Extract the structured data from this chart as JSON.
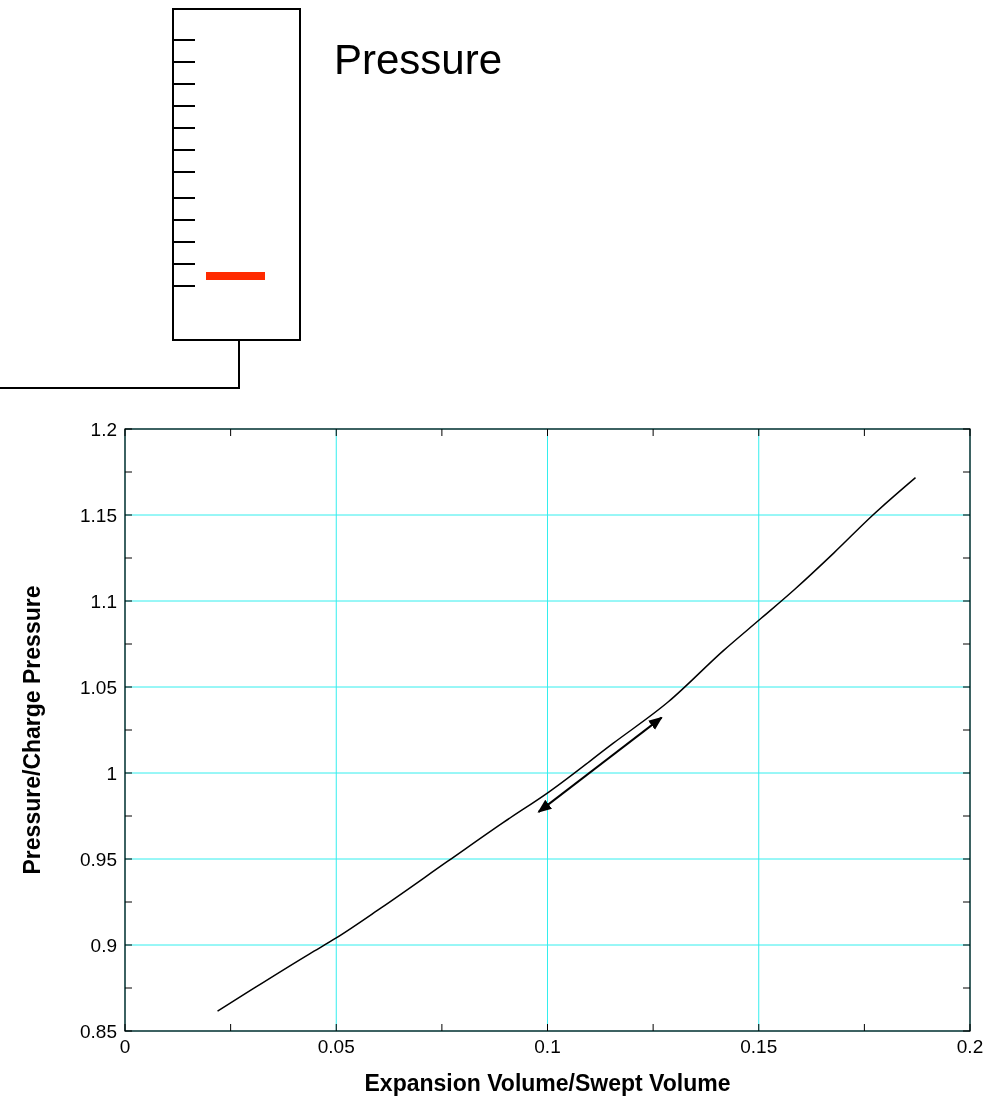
{
  "chart_data": {
    "type": "line",
    "xlabel": "Expansion Volume/Swept Volume",
    "ylabel": "Pressure/Charge Pressure",
    "annotations": [
      "Pressure"
    ],
    "series": [
      {
        "color": "#000000",
        "x": [
          0.0219,
          0.0437,
          0.05,
          0.0607,
          0.0764,
          0.0894,
          0.1003,
          0.1155,
          0.1286,
          0.1417,
          0.1505,
          0.1586,
          0.1678,
          0.1769,
          0.1871
        ],
        "values": [
          0.8615,
          0.8949,
          0.9041,
          0.9217,
          0.9487,
          0.971,
          0.9889,
          1.0172,
          1.0414,
          1.0713,
          1.0898,
          1.107,
          1.128,
          1.1497,
          1.1717
        ]
      }
    ],
    "xlim": [
      0,
      0.2
    ],
    "ylim": [
      0.85,
      1.2
    ],
    "xticks": [
      0,
      {
        "value": 0.025,
        "label": null
      },
      0.05,
      {
        "value": 0.075,
        "label": null
      },
      0.1,
      {
        "value": 0.125,
        "label": null
      },
      0.15,
      {
        "value": 0.175,
        "label": null
      },
      0.2
    ],
    "yticks": [
      0.85,
      {
        "value": 0.875,
        "label": null
      },
      0.9,
      {
        "value": 0.925,
        "label": null
      },
      0.95,
      {
        "value": 0.975,
        "label": null
      },
      1,
      {
        "value": 1.025,
        "label": null
      },
      1.05,
      {
        "value": 1.075,
        "label": null
      },
      1.1,
      {
        "value": 1.125,
        "label": null
      },
      1.15,
      {
        "value": 1.175,
        "label": null
      },
      1.2
    ],
    "grid": true,
    "marker": "none",
    "line_style": "solid"
  }
}
